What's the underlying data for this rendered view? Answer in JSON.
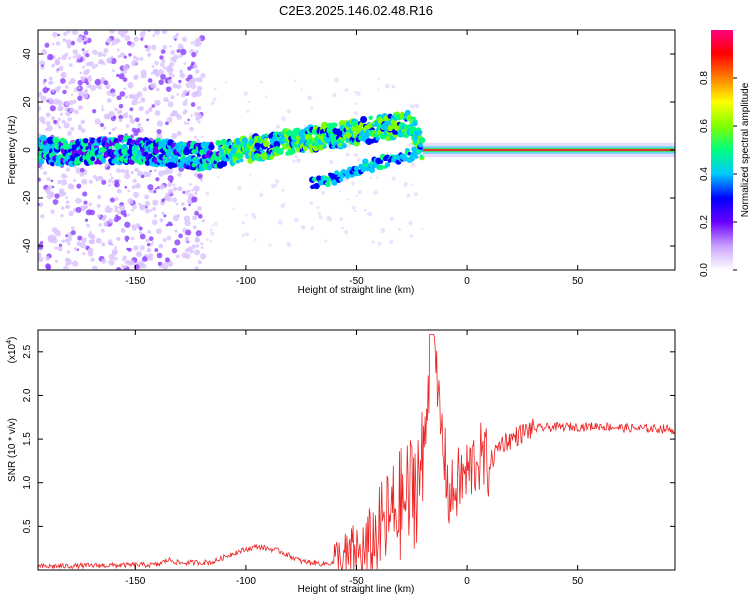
{
  "title": "C2E3.2025.146.02.48.R16",
  "chart_data": [
    {
      "type": "heatmap",
      "name": "spectrogram",
      "xlabel": "Height of straight line (km)",
      "ylabel": "Frequency (Hz)",
      "xlim": [
        -194,
        94
      ],
      "ylim": [
        -50,
        50
      ],
      "xticks": [
        -150,
        -100,
        -50,
        0,
        50
      ],
      "yticks": [
        -40,
        -20,
        0,
        20,
        40
      ],
      "colorbar": {
        "label": "Normalized spectral amplitude",
        "range": [
          0,
          1
        ],
        "ticks": [
          "0.0",
          "0.2",
          "0.4",
          "0.6",
          "0.8"
        ],
        "colors": [
          "#ffffff",
          "#c9a0ff",
          "#6a00ff",
          "#0000ff",
          "#00c8ff",
          "#00ff80",
          "#80ff00",
          "#ffff00",
          "#ff8000",
          "#ff0000",
          "#ff0080"
        ]
      },
      "ridge": {
        "description_points": [
          [
            -190,
            -1
          ],
          [
            -150,
            0
          ],
          [
            -120,
            -3
          ],
          [
            -100,
            0
          ],
          [
            -80,
            3
          ],
          [
            -60,
            6
          ],
          [
            -40,
            9
          ],
          [
            -25,
            11
          ],
          [
            -20,
            0
          ],
          [
            0,
            0
          ],
          [
            50,
            0
          ],
          [
            94,
            0
          ]
        ]
      }
    },
    {
      "type": "line",
      "name": "snr",
      "xlabel": "Height of straight line (km)",
      "ylabel": "SNR (10 * v/v)",
      "multiplier_label": "(x10",
      "multiplier_exp": "4",
      "multiplier_close": ")",
      "xlim": [
        -194,
        94
      ],
      "ylim": [
        0,
        2.75
      ],
      "xticks": [
        -150,
        -100,
        -50,
        0,
        50
      ],
      "yticks": [
        "0.5",
        "1.0",
        "1.5",
        "2.0",
        "2.5"
      ],
      "color": "#ee2222",
      "series": [
        {
          "values_x": [
            -194,
            -170,
            -140,
            -135,
            -130,
            -115,
            -105,
            -95,
            -85,
            -75,
            -65,
            -55,
            -45,
            -38,
            -32,
            -26,
            -20,
            -16,
            -12,
            -8,
            -4,
            0,
            5,
            10,
            15,
            20,
            25,
            30,
            40,
            50,
            60,
            70,
            80,
            90,
            94
          ],
          "values_y": [
            0.04,
            0.05,
            0.06,
            0.12,
            0.08,
            0.09,
            0.2,
            0.27,
            0.22,
            0.1,
            0.07,
            0.1,
            0.2,
            0.5,
            0.7,
            0.85,
            1.2,
            2.6,
            1.7,
            0.8,
            1.0,
            1.1,
            1.3,
            1.2,
            1.45,
            1.5,
            1.57,
            1.62,
            1.64,
            1.64,
            1.65,
            1.63,
            1.62,
            1.62,
            1.6
          ]
        }
      ]
    }
  ]
}
